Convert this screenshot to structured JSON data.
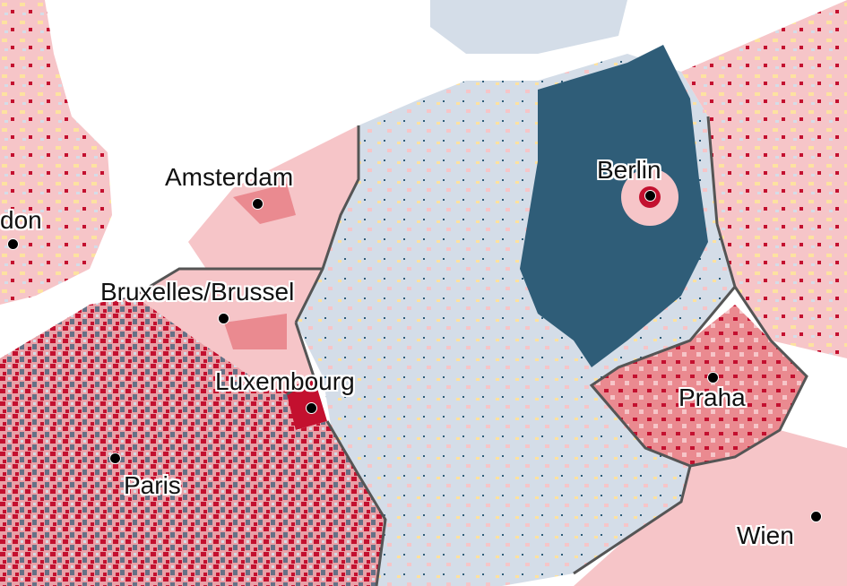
{
  "map": {
    "colors": {
      "sea": "#ffffff",
      "light_blue": "#d4dde8",
      "pink": "#f6c5c8",
      "salmon": "#ea8a90",
      "red": "#c3102f",
      "dark_blue": "#2f5d78",
      "yellow": "#fde2a0",
      "border": "#555555"
    },
    "cities": [
      {
        "name": "Amsterdam"
      },
      {
        "name": "don"
      },
      {
        "name": "Bruxelles/Brussel"
      },
      {
        "name": "Luxembourg"
      },
      {
        "name": "Paris"
      },
      {
        "name": "Berlin"
      },
      {
        "name": "Praha"
      },
      {
        "name": "Wien"
      }
    ]
  }
}
